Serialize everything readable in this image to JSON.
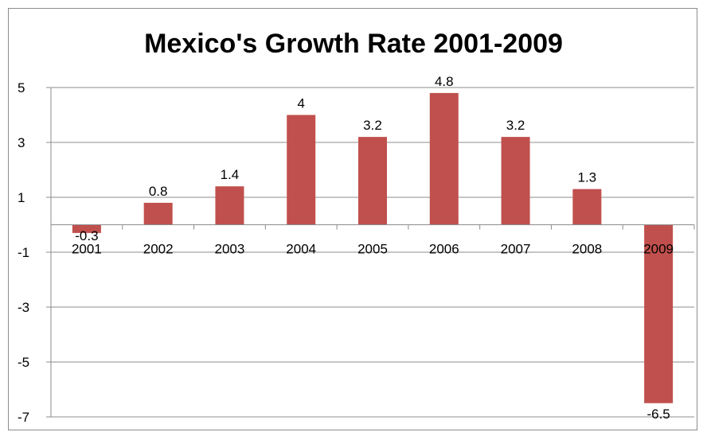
{
  "chart_data": {
    "type": "bar",
    "title": "Mexico's Growth Rate 2001-2009",
    "xlabel": "",
    "ylabel": "",
    "categories": [
      "2001",
      "2002",
      "2003",
      "2004",
      "2005",
      "2006",
      "2007",
      "2008",
      "2009"
    ],
    "values": [
      -0.3,
      0.8,
      1.4,
      4,
      3.2,
      4.8,
      3.2,
      1.3,
      -6.5
    ],
    "data_labels": [
      "-0.3",
      "0.8",
      "1.4",
      "4",
      "3.2",
      "4.8",
      "3.2",
      "1.3",
      "-6.5"
    ],
    "y_ticks": [
      5,
      3,
      1,
      -1,
      -3,
      -5,
      -7
    ],
    "ylim": [
      -7,
      5
    ],
    "grid": true,
    "legend": "none",
    "bar_color": "#c0504d"
  }
}
